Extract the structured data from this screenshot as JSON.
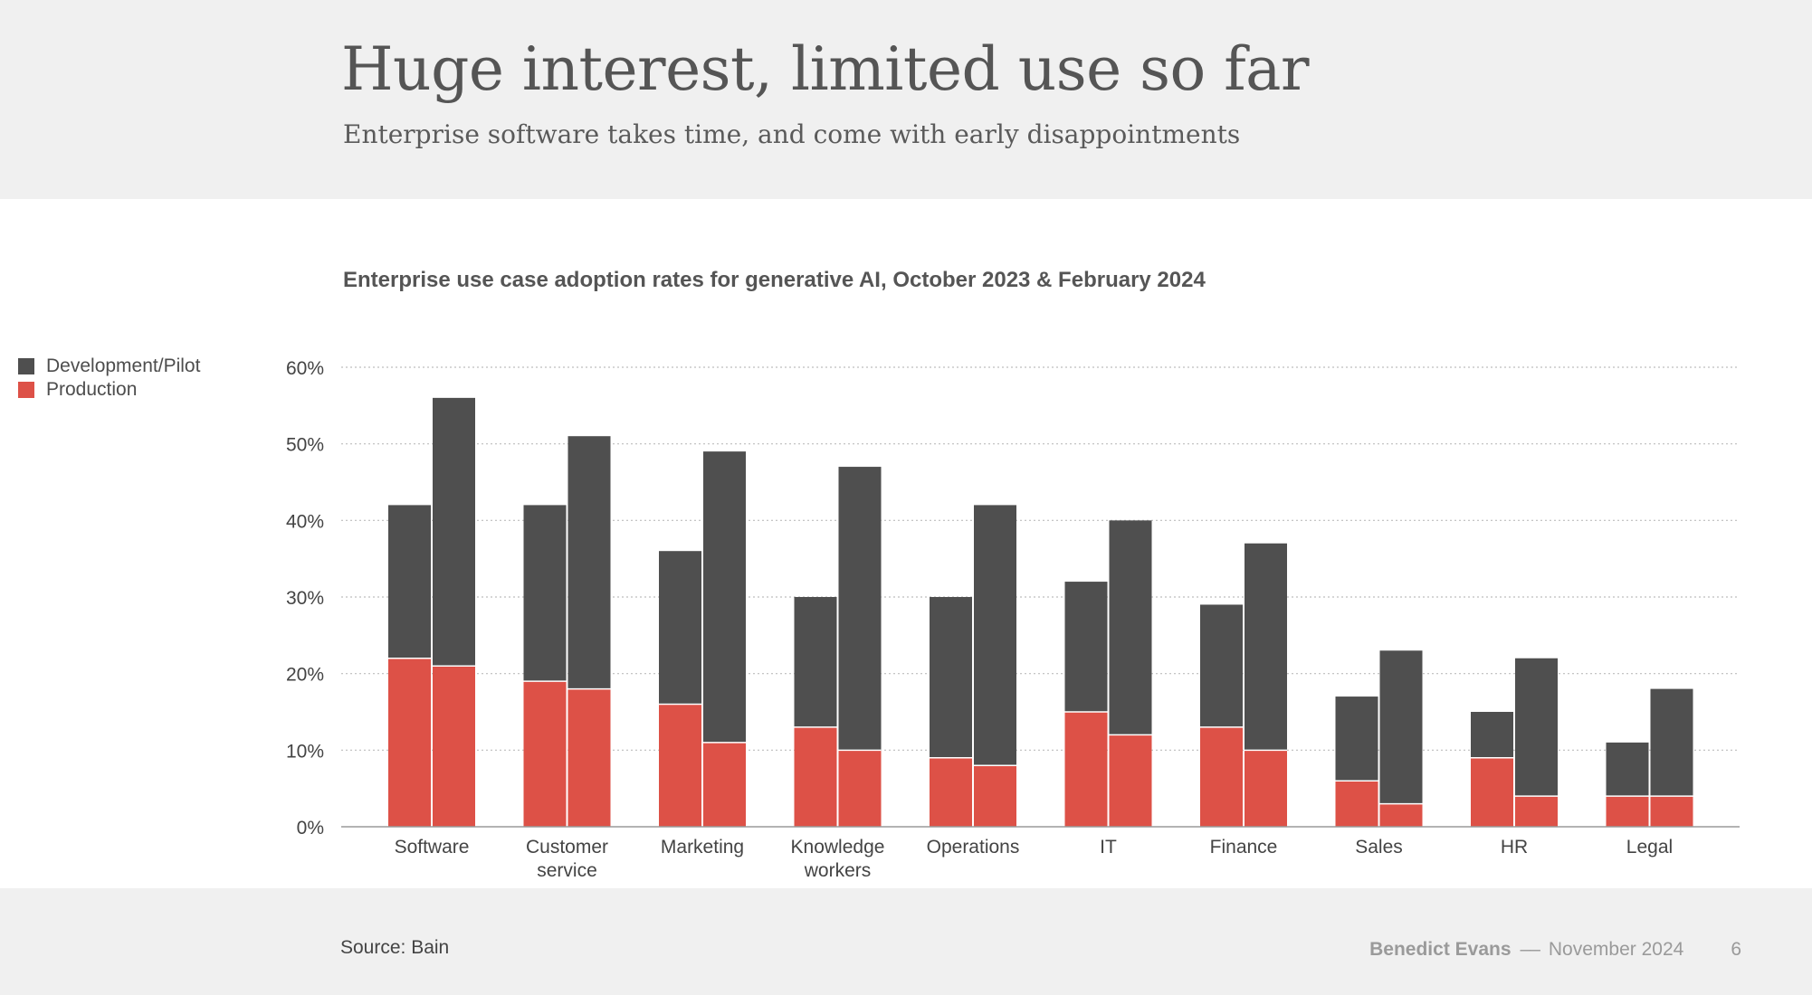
{
  "header": {
    "title": "Huge interest, limited use so far",
    "subtitle": "Enterprise software takes time, and come with early disappointments"
  },
  "footer": {
    "source": "Source: Bain",
    "author": "Benedict Evans",
    "separator": "––",
    "date": "November 2024",
    "page": "6"
  },
  "colors": {
    "development": "#4f4f4f",
    "production": "#dd5147",
    "grid": "#bdbdbd",
    "axis": "#9a9a9a",
    "tick_text": "#444444"
  },
  "chart_data": {
    "type": "bar",
    "stacked": true,
    "title": "Enterprise use case adoption rates for generative AI, October 2023 & February 2024",
    "periods": [
      "October 2023",
      "February 2024"
    ],
    "categories": [
      [
        "Software"
      ],
      [
        "Customer",
        "service"
      ],
      [
        "Marketing"
      ],
      [
        "Knowledge",
        "workers"
      ],
      [
        "Operations"
      ],
      [
        "IT"
      ],
      [
        "Finance"
      ],
      [
        "Sales"
      ],
      [
        "HR"
      ],
      [
        "Legal"
      ]
    ],
    "series": [
      {
        "name": "Development/Pilot",
        "color_key": "development",
        "values": [
          [
            20,
            35
          ],
          [
            23,
            33
          ],
          [
            20,
            38
          ],
          [
            17,
            37
          ],
          [
            21,
            34
          ],
          [
            17,
            28
          ],
          [
            16,
            27
          ],
          [
            11,
            20
          ],
          [
            6,
            18
          ],
          [
            7,
            14
          ]
        ]
      },
      {
        "name": "Production",
        "color_key": "production",
        "values": [
          [
            22,
            21
          ],
          [
            19,
            18
          ],
          [
            16,
            11
          ],
          [
            13,
            10
          ],
          [
            9,
            8
          ],
          [
            15,
            12
          ],
          [
            13,
            10
          ],
          [
            6,
            3
          ],
          [
            9,
            4
          ],
          [
            4,
            4
          ]
        ]
      }
    ],
    "yticks": [
      0,
      10,
      20,
      30,
      40,
      50,
      60
    ],
    "ytick_labels": [
      "0%",
      "10%",
      "20%",
      "30%",
      "40%",
      "50%",
      "60%"
    ],
    "ylim": [
      0,
      60
    ],
    "grid": true,
    "legend_position": "top-left",
    "xlabel": "",
    "ylabel": ""
  }
}
